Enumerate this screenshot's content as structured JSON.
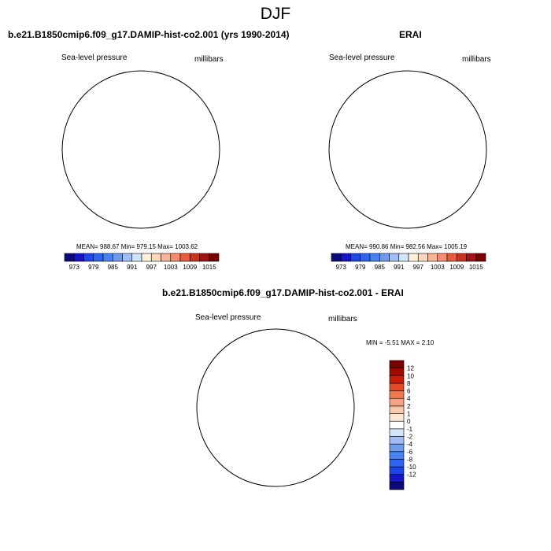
{
  "title": "DJF",
  "panels": [
    {
      "title": "b.e21.B1850cmip6.f09_g17.DAMIP-hist-co2.001 (yrs 1990-2014)",
      "left_label": "Sea-level pressure",
      "right_label": "millibars",
      "stats": "MEAN= 988.67   Min= 979.15   Max= 1003.62"
    },
    {
      "title": "ERAI",
      "left_label": "Sea-level pressure",
      "right_label": "millibars",
      "stats": "MEAN= 990.86   Min= 982.56   Max= 1005.19"
    },
    {
      "title": "b.e21.B1850cmip6.f09_g17.DAMIP-hist-co2.001 - ERAI",
      "left_label": "Sea-level pressure",
      "right_label": "millibars",
      "stats": "MIN =  -5.51  MAX =   2.10"
    }
  ],
  "colorbar_abs": {
    "colors": [
      "#0a0a7a",
      "#1414c8",
      "#1e46e6",
      "#2d64f0",
      "#4682f0",
      "#6e9bf0",
      "#a0bef5",
      "#d2e4fa",
      "#fff0dc",
      "#fcd7be",
      "#f8b496",
      "#f58c6e",
      "#e85a3c",
      "#c8321e",
      "#a01414",
      "#780000"
    ],
    "ticks": [
      "973",
      "979",
      "985",
      "991",
      "997",
      "1003",
      "1009",
      "1015"
    ]
  },
  "colorbar_diff": {
    "colors": [
      "#0a0a7a",
      "#1414c8",
      "#1e46e6",
      "#2d64f0",
      "#4682f0",
      "#6e9bf0",
      "#a0bef5",
      "#d2e4fa",
      "#ffffff",
      "#fce6d2",
      "#f8c8aa",
      "#f5a082",
      "#f07850",
      "#e64b28",
      "#c81e0a",
      "#a00a00",
      "#780000"
    ],
    "ticks": [
      "12",
      "10",
      "8",
      "6",
      "4",
      "2",
      "1",
      "0",
      "-1",
      "-2",
      "-4",
      "-6",
      "-8",
      "-10",
      "-12"
    ]
  },
  "chart_data": [
    {
      "type": "heatmap",
      "subtype": "polar-stereographic contour map",
      "title": "b.e21.B1850cmip6.f09_g17.DAMIP-hist-co2.001 (yrs 1990-2014)",
      "variable": "Sea-level pressure",
      "units": "millibars",
      "season": "DJF",
      "mean": 988.67,
      "min": 979.15,
      "max": 1003.62,
      "contour_levels": [
        973,
        976,
        979,
        982,
        985,
        988,
        991,
        994,
        997,
        1000,
        1003,
        1006,
        1009,
        1012,
        1015
      ]
    },
    {
      "type": "heatmap",
      "subtype": "polar-stereographic contour map",
      "title": "ERAI",
      "variable": "Sea-level pressure",
      "units": "millibars",
      "season": "DJF",
      "mean": 990.86,
      "min": 982.56,
      "max": 1005.19,
      "contour_levels": [
        973,
        976,
        979,
        982,
        985,
        988,
        991,
        994,
        997,
        1000,
        1003,
        1006,
        1009,
        1012,
        1015
      ]
    },
    {
      "type": "heatmap",
      "subtype": "polar-stereographic contour map (difference)",
      "title": "b.e21.B1850cmip6.f09_g17.DAMIP-hist-co2.001 - ERAI",
      "variable": "Sea-level pressure",
      "units": "millibars",
      "season": "DJF",
      "min": -5.51,
      "max": 2.1,
      "contour_levels": [
        -12,
        -10,
        -8,
        -6,
        -4,
        -2,
        -1,
        0,
        1,
        2,
        4,
        6,
        8,
        10,
        12
      ]
    }
  ]
}
